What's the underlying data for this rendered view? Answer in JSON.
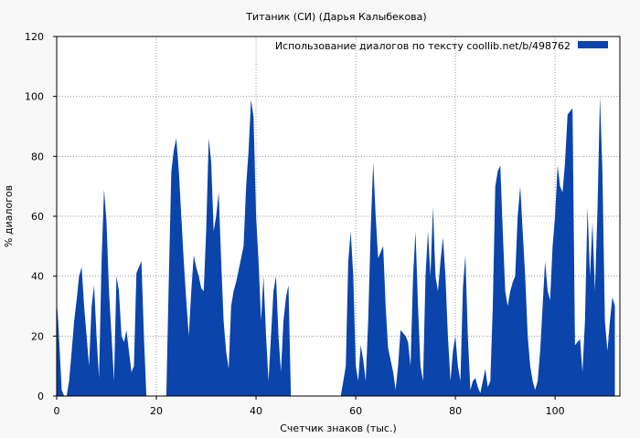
{
  "chart_data": {
    "type": "area",
    "title": "Титаник (СИ) (Дарья Калыбекова)",
    "xlabel": "Счетчик знаков (тыс.)",
    "ylabel": "% диалогов",
    "xlim": [
      0,
      113
    ],
    "ylim": [
      0,
      120
    ],
    "x_ticks": [
      "0",
      "20",
      "40",
      "60",
      "80",
      "100"
    ],
    "y_ticks": [
      "0",
      "20",
      "40",
      "60",
      "80",
      "100",
      "120"
    ],
    "grid": true,
    "legend": "top-right",
    "colors": {
      "series": "#0b44aa",
      "grid": "#999999",
      "background": "#f8f8f8",
      "plot": "#ffffff"
    },
    "series": [
      {
        "name": "Использование диалогов по тексту  coollib.net/b/498762",
        "points": [
          [
            0,
            32
          ],
          [
            0.3,
            25
          ],
          [
            0.6,
            15
          ],
          [
            1,
            2
          ],
          [
            1.5,
            0
          ],
          [
            2,
            0
          ],
          [
            2.5,
            5
          ],
          [
            3,
            15
          ],
          [
            3.5,
            25
          ],
          [
            4,
            32
          ],
          [
            4.5,
            40
          ],
          [
            5,
            43
          ],
          [
            5.5,
            30
          ],
          [
            6,
            20
          ],
          [
            6.5,
            10
          ],
          [
            7,
            30
          ],
          [
            7.5,
            37
          ],
          [
            8,
            20
          ],
          [
            8.5,
            6
          ],
          [
            9,
            45
          ],
          [
            9.5,
            69
          ],
          [
            10,
            58
          ],
          [
            10.5,
            35
          ],
          [
            11,
            20
          ],
          [
            11.5,
            5
          ],
          [
            12,
            40
          ],
          [
            12.5,
            35
          ],
          [
            13,
            20
          ],
          [
            13.5,
            18
          ],
          [
            14,
            22
          ],
          [
            14.5,
            15
          ],
          [
            15,
            8
          ],
          [
            15.5,
            10
          ],
          [
            16,
            41
          ],
          [
            16.5,
            43
          ],
          [
            17,
            45
          ],
          [
            17.5,
            20
          ],
          [
            18,
            0
          ],
          [
            22,
            0
          ],
          [
            22.5,
            40
          ],
          [
            23,
            75
          ],
          [
            23.5,
            82
          ],
          [
            24,
            86
          ],
          [
            24.5,
            75
          ],
          [
            25,
            60
          ],
          [
            25.5,
            45
          ],
          [
            26,
            32
          ],
          [
            26.5,
            20
          ],
          [
            27,
            35
          ],
          [
            27.5,
            47
          ],
          [
            28,
            43
          ],
          [
            28.5,
            40
          ],
          [
            29,
            36
          ],
          [
            29.5,
            35
          ],
          [
            30,
            55
          ],
          [
            30.5,
            86
          ],
          [
            31,
            78
          ],
          [
            31.5,
            55
          ],
          [
            32,
            60
          ],
          [
            32.5,
            68
          ],
          [
            33,
            45
          ],
          [
            33.5,
            25
          ],
          [
            34,
            15
          ],
          [
            34.5,
            9
          ],
          [
            35,
            30
          ],
          [
            35.5,
            35
          ],
          [
            36,
            38
          ],
          [
            36.5,
            42
          ],
          [
            37,
            46
          ],
          [
            37.5,
            50
          ],
          [
            38,
            70
          ],
          [
            38.5,
            82
          ],
          [
            39,
            99
          ],
          [
            39.5,
            93
          ],
          [
            40,
            60
          ],
          [
            40.5,
            45
          ],
          [
            41,
            25
          ],
          [
            41.5,
            40
          ],
          [
            42,
            20
          ],
          [
            42.5,
            5
          ],
          [
            43,
            20
          ],
          [
            43.5,
            35
          ],
          [
            44,
            40
          ],
          [
            44.5,
            20
          ],
          [
            45,
            8
          ],
          [
            45.5,
            25
          ],
          [
            46,
            33
          ],
          [
            46.5,
            37
          ],
          [
            47,
            0
          ],
          [
            57,
            0
          ],
          [
            57.5,
            5
          ],
          [
            58,
            10
          ],
          [
            58.5,
            45
          ],
          [
            59,
            55
          ],
          [
            59.5,
            40
          ],
          [
            60,
            10
          ],
          [
            60.5,
            5
          ],
          [
            61,
            17
          ],
          [
            61.5,
            12
          ],
          [
            62,
            5
          ],
          [
            62.5,
            25
          ],
          [
            63,
            55
          ],
          [
            63.5,
            78
          ],
          [
            64,
            60
          ],
          [
            64.5,
            46
          ],
          [
            65,
            48
          ],
          [
            65.5,
            50
          ],
          [
            66,
            30
          ],
          [
            66.5,
            16
          ],
          [
            67,
            12
          ],
          [
            67.5,
            8
          ],
          [
            68,
            2
          ],
          [
            68.5,
            10
          ],
          [
            69,
            22
          ],
          [
            69.5,
            21
          ],
          [
            70,
            20
          ],
          [
            70.5,
            18
          ],
          [
            71,
            10
          ],
          [
            71.5,
            40
          ],
          [
            72,
            55
          ],
          [
            72.5,
            30
          ],
          [
            73,
            10
          ],
          [
            73.5,
            5
          ],
          [
            74,
            40
          ],
          [
            74.5,
            55
          ],
          [
            75,
            40
          ],
          [
            75.5,
            63
          ],
          [
            76,
            40
          ],
          [
            76.5,
            35
          ],
          [
            77,
            45
          ],
          [
            77.5,
            53
          ],
          [
            78,
            40
          ],
          [
            78.5,
            20
          ],
          [
            79,
            5
          ],
          [
            79.5,
            15
          ],
          [
            80,
            20
          ],
          [
            80.5,
            10
          ],
          [
            81,
            5
          ],
          [
            81.5,
            36
          ],
          [
            82,
            47
          ],
          [
            82.5,
            20
          ],
          [
            83,
            2
          ],
          [
            83.5,
            5
          ],
          [
            84,
            6
          ],
          [
            84.5,
            3
          ],
          [
            85,
            1
          ],
          [
            85.5,
            5
          ],
          [
            86,
            9
          ],
          [
            86.5,
            3
          ],
          [
            87,
            5
          ],
          [
            87.5,
            30
          ],
          [
            88,
            70
          ],
          [
            88.5,
            75
          ],
          [
            89,
            77
          ],
          [
            89.5,
            55
          ],
          [
            90,
            35
          ],
          [
            90.5,
            30
          ],
          [
            91,
            35
          ],
          [
            91.5,
            38
          ],
          [
            92,
            40
          ],
          [
            92.5,
            60
          ],
          [
            93,
            70
          ],
          [
            93.5,
            55
          ],
          [
            94,
            40
          ],
          [
            94.5,
            20
          ],
          [
            95,
            10
          ],
          [
            95.5,
            5
          ],
          [
            96,
            2
          ],
          [
            96.5,
            5
          ],
          [
            97,
            15
          ],
          [
            97.5,
            30
          ],
          [
            98,
            45
          ],
          [
            98.5,
            35
          ],
          [
            99,
            32
          ],
          [
            99.5,
            50
          ],
          [
            100,
            60
          ],
          [
            100.5,
            77
          ],
          [
            101,
            70
          ],
          [
            101.5,
            68
          ],
          [
            102,
            78
          ],
          [
            102.5,
            94
          ],
          [
            103,
            95
          ],
          [
            103.5,
            96
          ],
          [
            104,
            17
          ],
          [
            104.5,
            18
          ],
          [
            105,
            19
          ],
          [
            105.5,
            8
          ],
          [
            106,
            25
          ],
          [
            106.5,
            63
          ],
          [
            107,
            40
          ],
          [
            107.5,
            58
          ],
          [
            108,
            35
          ],
          [
            108.5,
            62
          ],
          [
            109,
            100
          ],
          [
            109.5,
            75
          ],
          [
            110,
            25
          ],
          [
            110.5,
            15
          ],
          [
            111,
            25
          ],
          [
            111.5,
            33
          ],
          [
            112,
            30
          ]
        ]
      }
    ]
  }
}
